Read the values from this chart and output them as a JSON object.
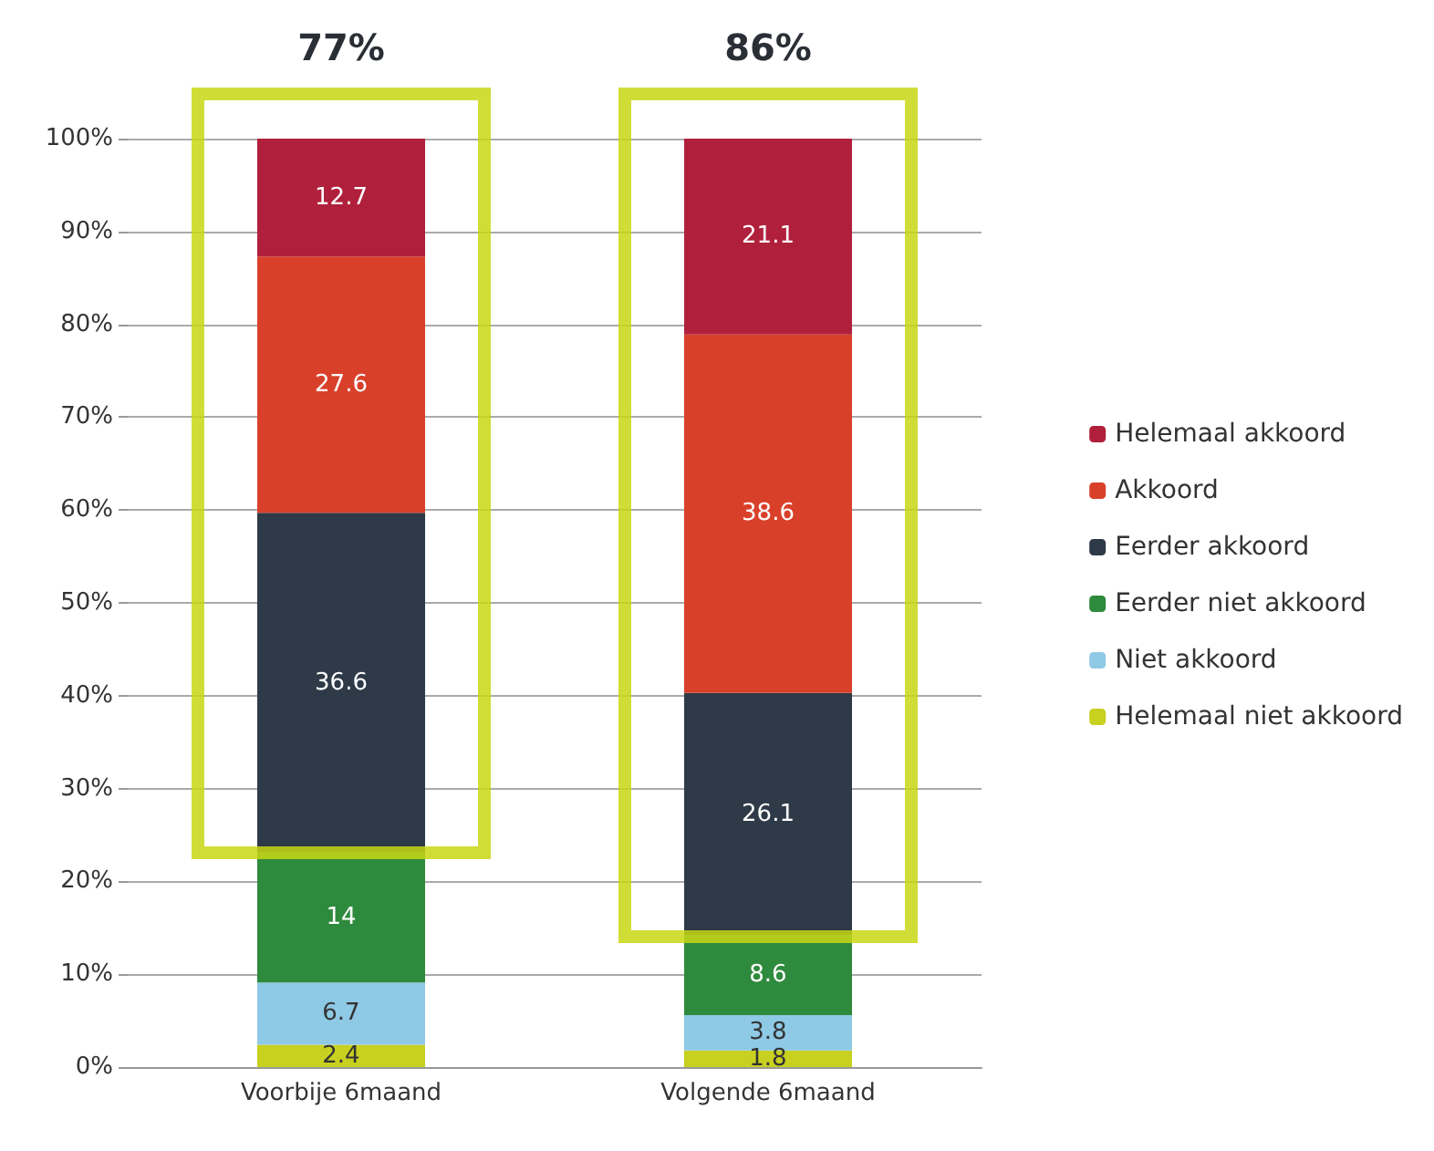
{
  "chart_data": {
    "type": "bar",
    "stacked": true,
    "categories": [
      "Voorbije 6maand",
      "Volgende 6maand"
    ],
    "series": [
      {
        "name": "Helemaal niet akkoord",
        "color": "#c8d020",
        "values": [
          2.4,
          1.8
        ]
      },
      {
        "name": "Niet akkoord",
        "color": "#8ec9e6",
        "values": [
          6.7,
          3.8
        ]
      },
      {
        "name": "Eerder niet akkoord",
        "color": "#2e8a3c",
        "values": [
          14,
          8.6
        ]
      },
      {
        "name": "Eerder akkoord",
        "color": "#2e3a48",
        "values": [
          36.6,
          26.1
        ]
      },
      {
        "name": "Akkoord",
        "color": "#d9402a",
        "values": [
          27.6,
          38.6
        ]
      },
      {
        "name": "Helemaal akkoord",
        "color": "#b0203c",
        "values": [
          12.7,
          21.1
        ]
      }
    ],
    "ylim": [
      0,
      100
    ],
    "yticks": [
      {
        "value": 0,
        "label": "0%"
      },
      {
        "value": 10,
        "label": "10%"
      },
      {
        "value": 20,
        "label": "20%"
      },
      {
        "value": 30,
        "label": "30%"
      },
      {
        "value": 40,
        "label": "40%"
      },
      {
        "value": 50,
        "label": "50%"
      },
      {
        "value": 60,
        "label": "60%"
      },
      {
        "value": 70,
        "label": "70%"
      },
      {
        "value": 80,
        "label": "80%"
      },
      {
        "value": 90,
        "label": "90%"
      },
      {
        "value": 100,
        "label": "100%"
      }
    ],
    "grid": "y",
    "legend": "right",
    "data_labels": true,
    "annotations": [
      {
        "text": "77%",
        "x": "Voorbije 6maand",
        "y": 100
      },
      {
        "text": "86%",
        "x": "Volgende 6maand",
        "y": 100
      }
    ]
  }
}
